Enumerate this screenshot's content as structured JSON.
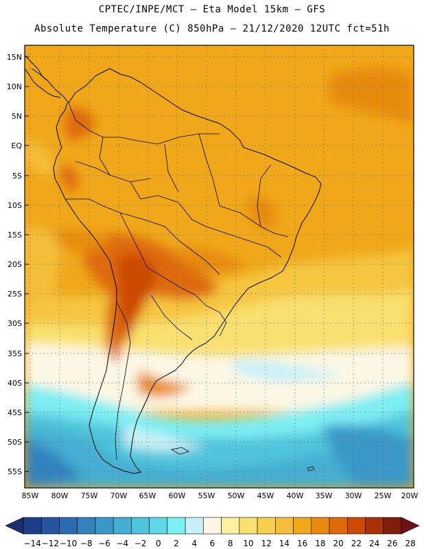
{
  "header": {
    "line1": "CPTEC/INPE/MCT –  Eta Model 15km – GFS",
    "line2": "Absolute Temperature (C) 850hPa – 21/12/2020 12UTC fct=51h"
  },
  "map": {
    "lat_labels": [
      "15N",
      "10N",
      "5N",
      "EQ",
      "5S",
      "10S",
      "15S",
      "20S",
      "25S",
      "30S",
      "35S",
      "40S",
      "45S",
      "50S",
      "55S"
    ],
    "lon_labels": [
      "85W",
      "80W",
      "75W",
      "70W",
      "65W",
      "60W",
      "55W",
      "50W",
      "45W",
      "40W",
      "35W",
      "30W",
      "25W",
      "20W"
    ]
  },
  "colorbar": {
    "labels": [
      "-14",
      "-12",
      "-10",
      "-8",
      "-6",
      "-4",
      "-2",
      "0",
      "2",
      "4",
      "6",
      "8",
      "10",
      "12",
      "14",
      "16",
      "18",
      "20",
      "22",
      "24",
      "26",
      "28"
    ],
    "colors": [
      "#1d3f8a",
      "#2456a0",
      "#2b6cb0",
      "#3282be",
      "#3a98c8",
      "#44aed2",
      "#4fc4dc",
      "#5fd8e8",
      "#7deef2",
      "#c8f0f8",
      "#fdf8e6",
      "#fbf0a0",
      "#f9e070",
      "#f7d050",
      "#f4be3a",
      "#f0a81a",
      "#e88a10",
      "#de6a08",
      "#cc4a05",
      "#a83205",
      "#7e1e08"
    ]
  }
}
